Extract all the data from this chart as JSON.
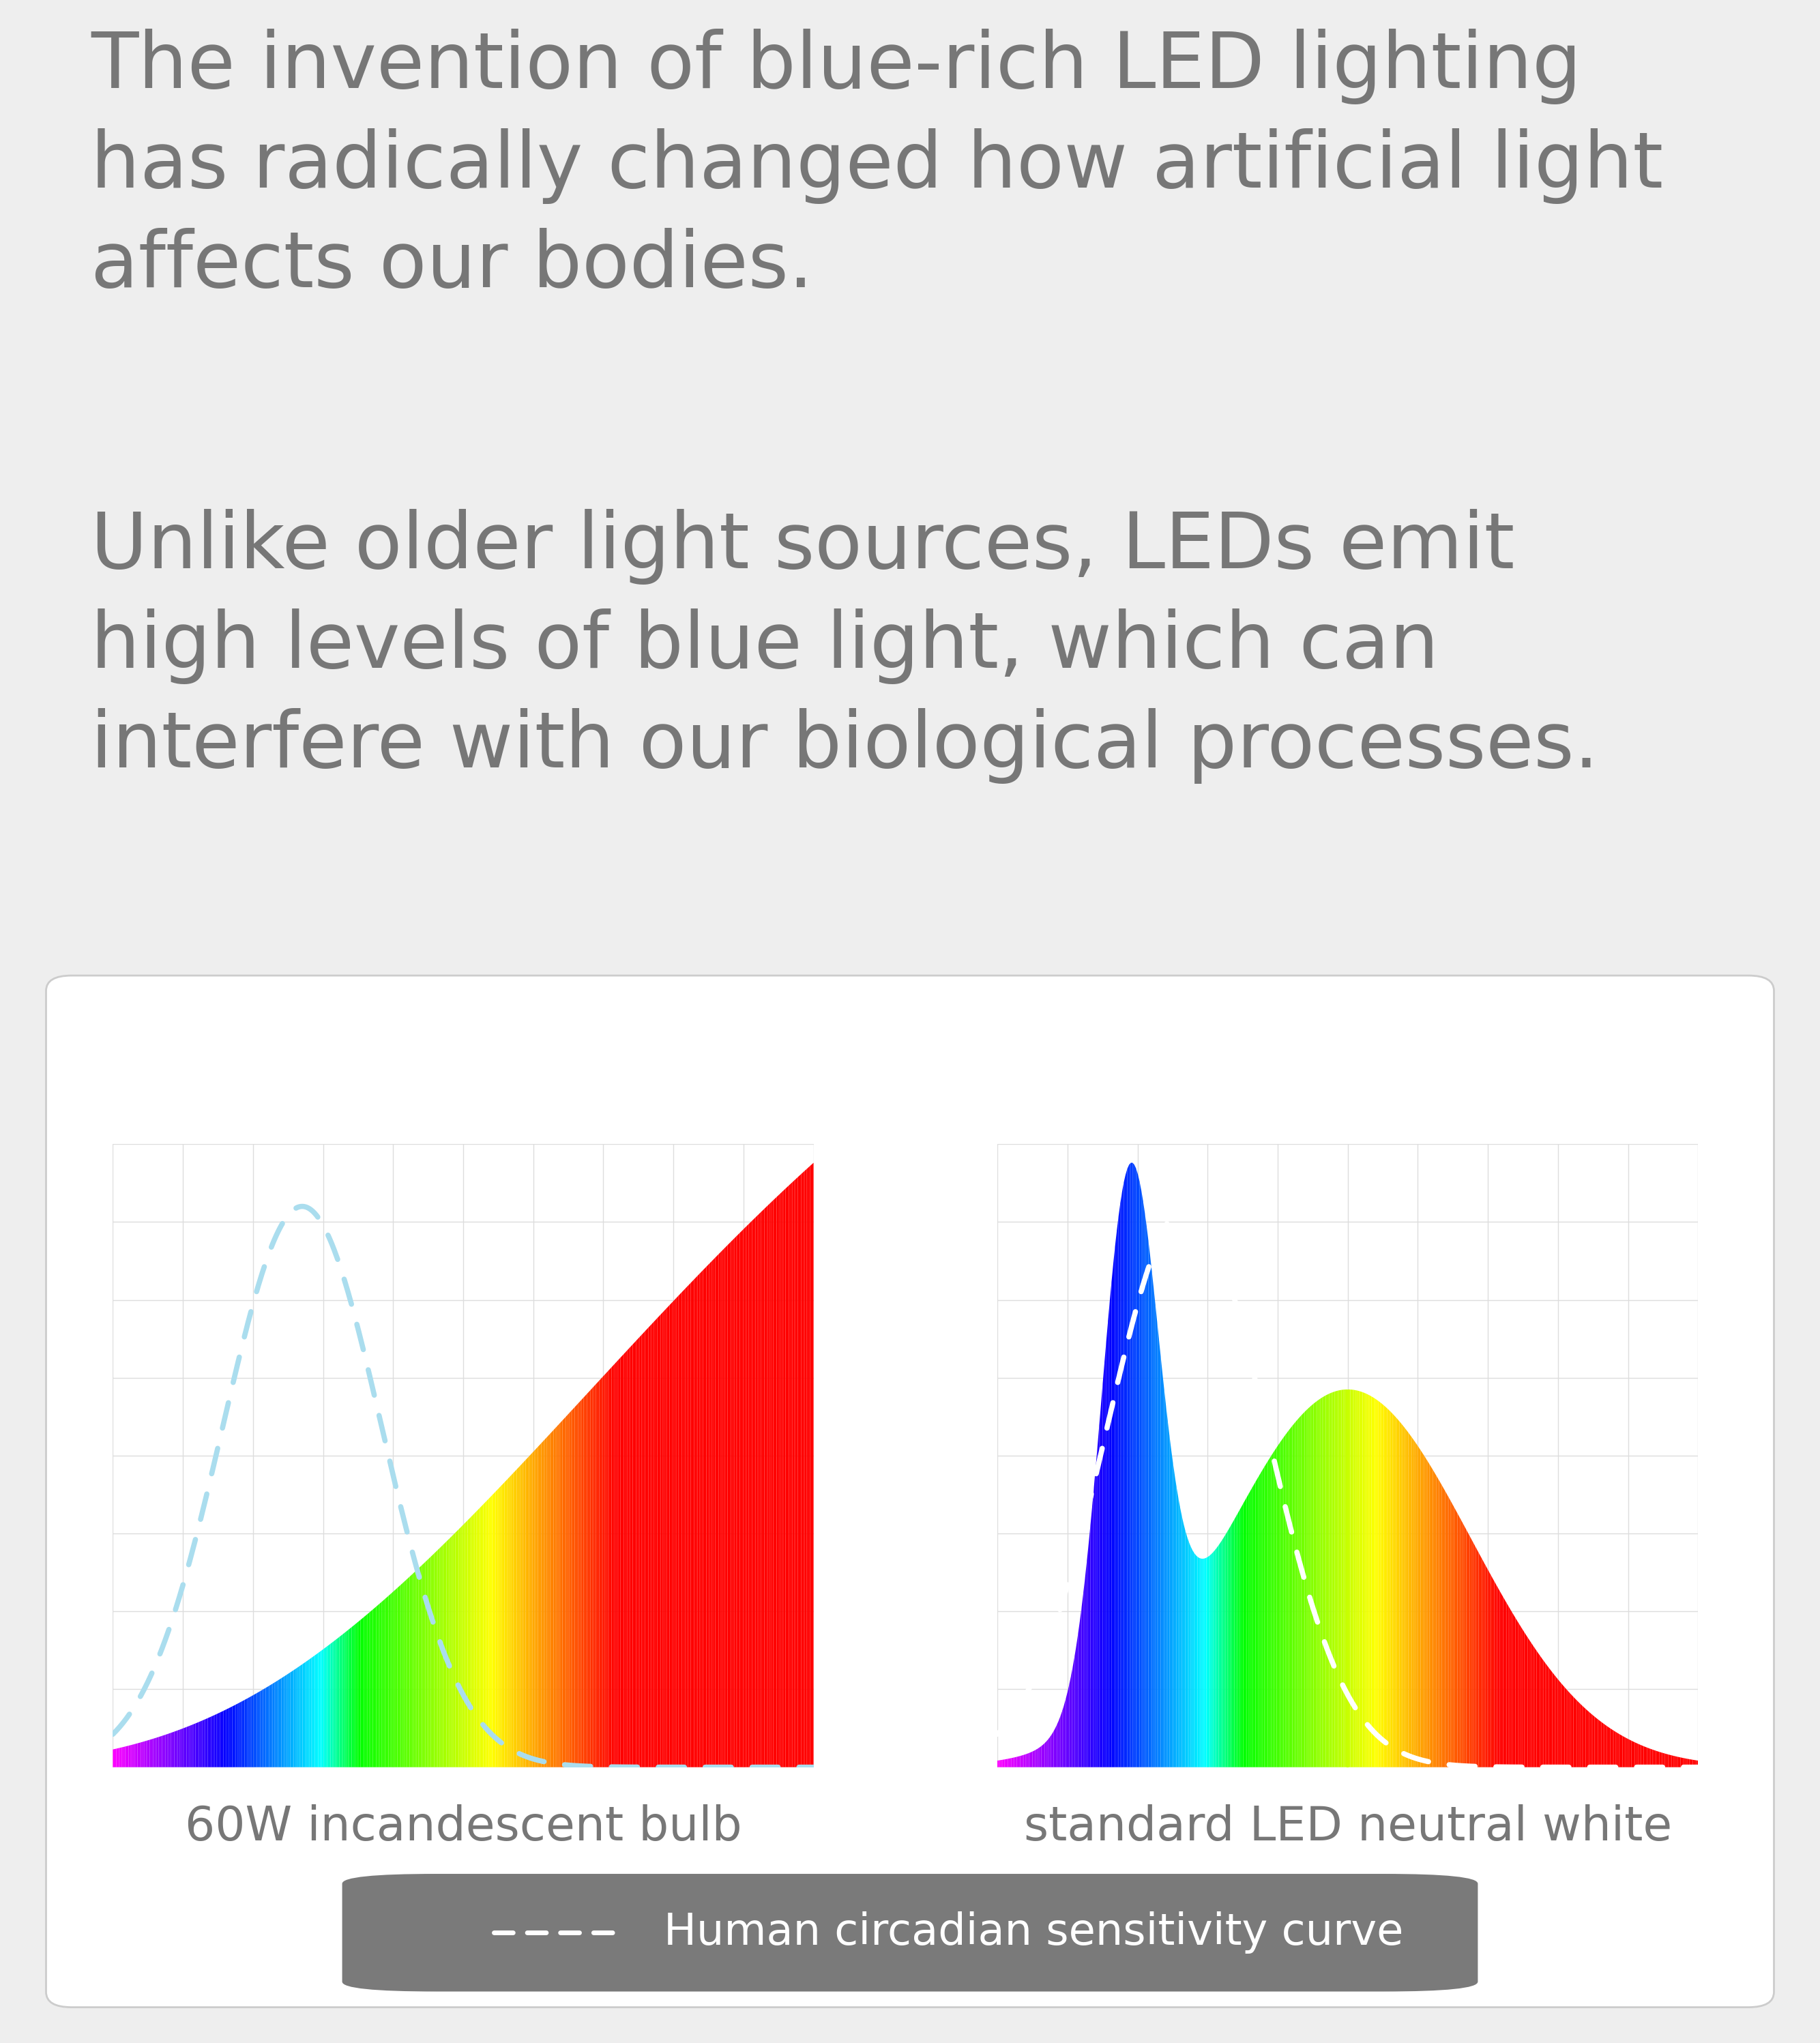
{
  "bg_color": "#eeeeee",
  "panel_bg": "#ffffff",
  "panel_border": "#cccccc",
  "text_color": "#777777",
  "title1": "The invention of blue-rich LED lighting\nhas radically changed how artificial light\naffects our bodies.",
  "title2": "Unlike older light sources, LEDs emit\nhigh levels of blue light, which can\ninterfere with our biological processes.",
  "label1": "60W incandescent bulb",
  "label2": "standard LED neutral white",
  "legend_text": "Human circadian sensitivity curve",
  "legend_bg": "#7a7a7a",
  "grid_color": "#dddddd",
  "title_fontsize": 82,
  "label_fontsize": 50,
  "legend_fontsize": 46
}
